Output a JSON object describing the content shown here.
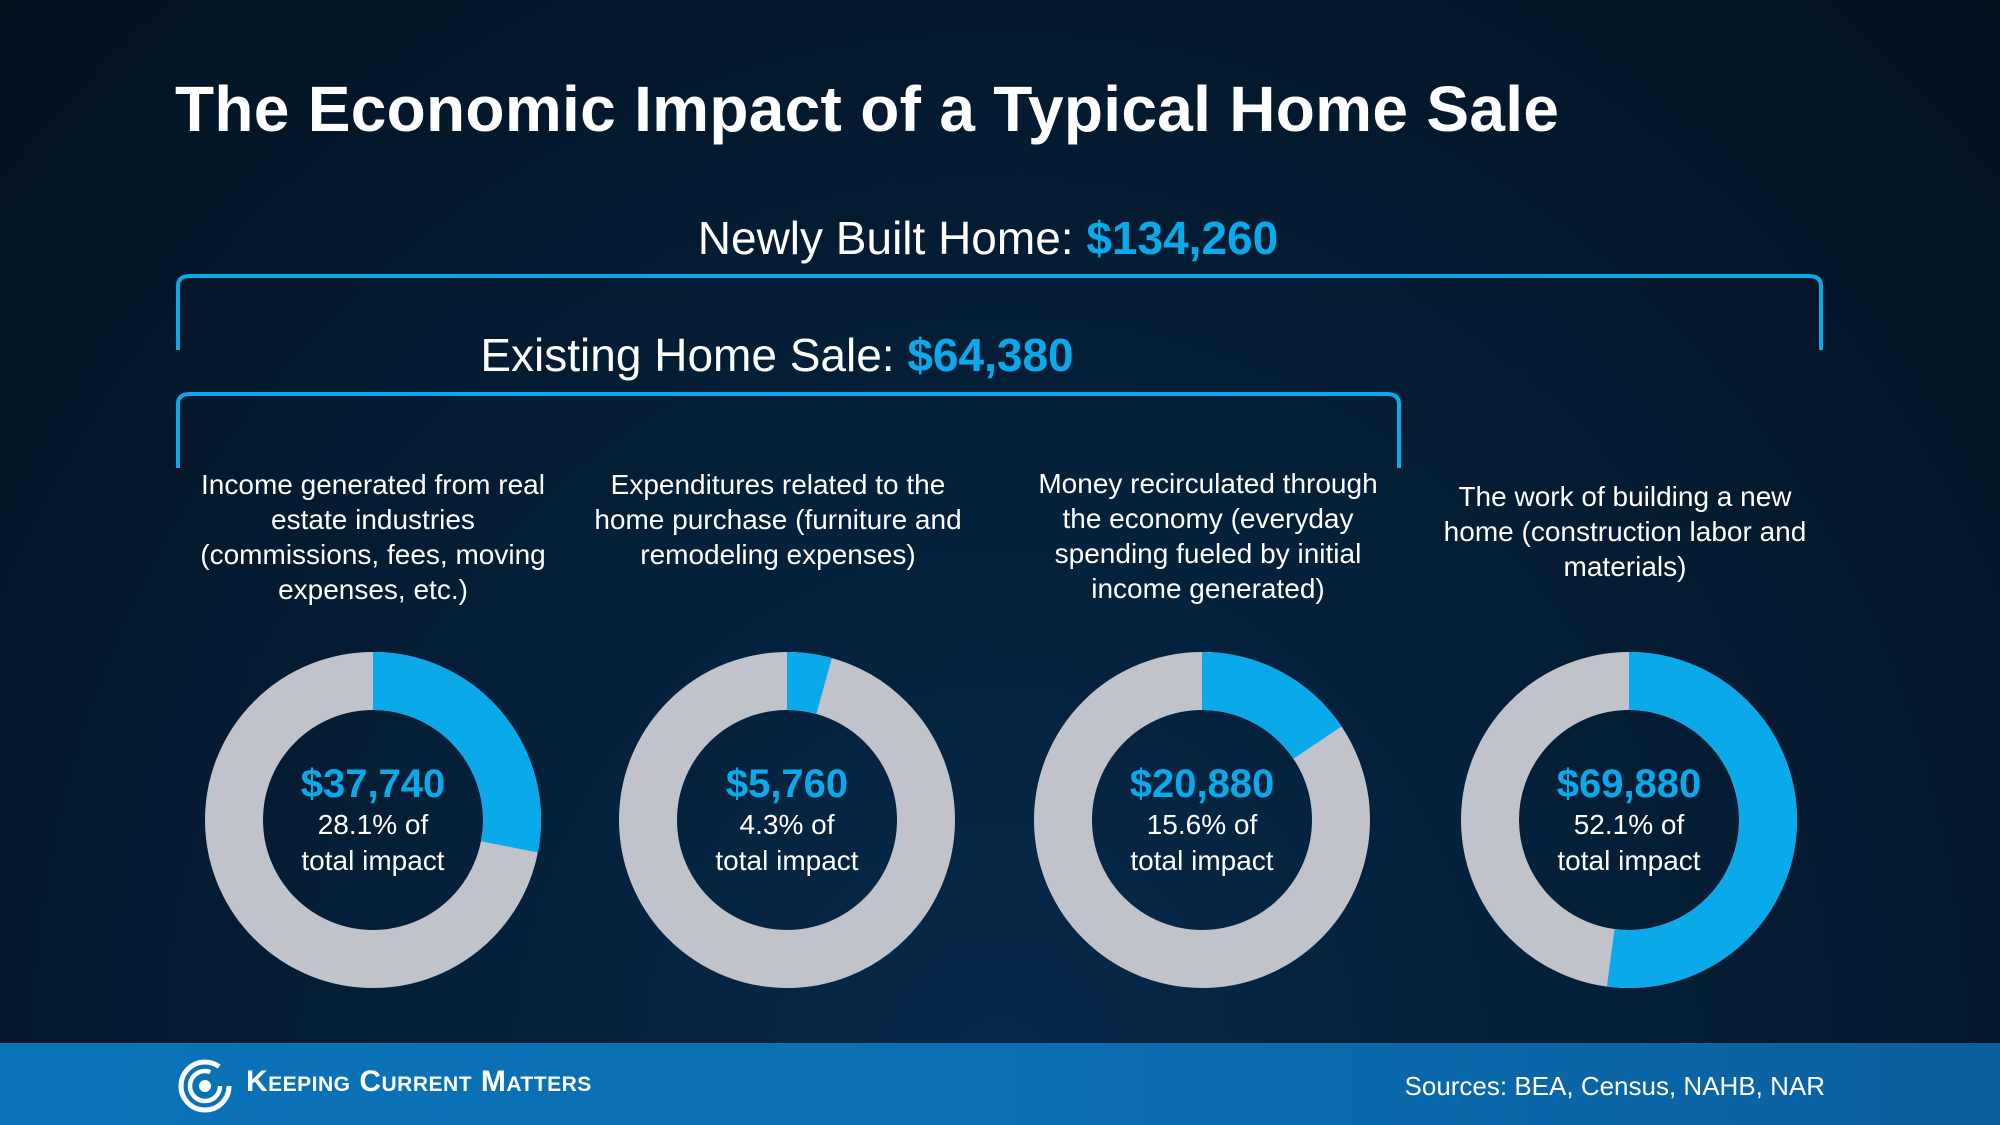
{
  "title": "The Economic Impact of a Typical Home Sale",
  "brackets": {
    "new": {
      "label": "Newly Built Home: ",
      "amount": "$134,260"
    },
    "existing": {
      "label": "Existing Home Sale: ",
      "amount": "$64,380"
    }
  },
  "colors": {
    "accent": "#0aaaea",
    "ring_remainder": "#c1c3ca",
    "background": "#03172a",
    "footer": "#0a6fb3"
  },
  "chart_data": {
    "type": "pie",
    "style": "donut",
    "total_label": "total impact",
    "slices": [
      {
        "caption": "Income generated from real estate industries (commissions, fees, moving expenses, etc.)",
        "amount": "$37,740",
        "percent": 28.1,
        "percent_text": "28.1% of",
        "sub_text": "total impact"
      },
      {
        "caption": "Expenditures related to the home purchase (furniture and remodeling expenses)",
        "amount": "$5,760",
        "percent": 4.3,
        "percent_text": "4.3% of",
        "sub_text": "total impact"
      },
      {
        "caption": "Money recirculated through the economy (everyday spending fueled by initial income generated)",
        "amount": "$20,880",
        "percent": 15.6,
        "percent_text": "15.6% of",
        "sub_text": "total impact"
      },
      {
        "caption": "The work of building a new home (construction labor and materials)",
        "amount": "$69,880",
        "percent": 52.1,
        "percent_text": "52.1% of",
        "sub_text": "total impact"
      }
    ]
  },
  "footer": {
    "brand": "Keeping Current Matters",
    "sources": "Sources: BEA, Census, NAHB, NAR",
    "logo_icon": "swirl-logo-icon"
  }
}
